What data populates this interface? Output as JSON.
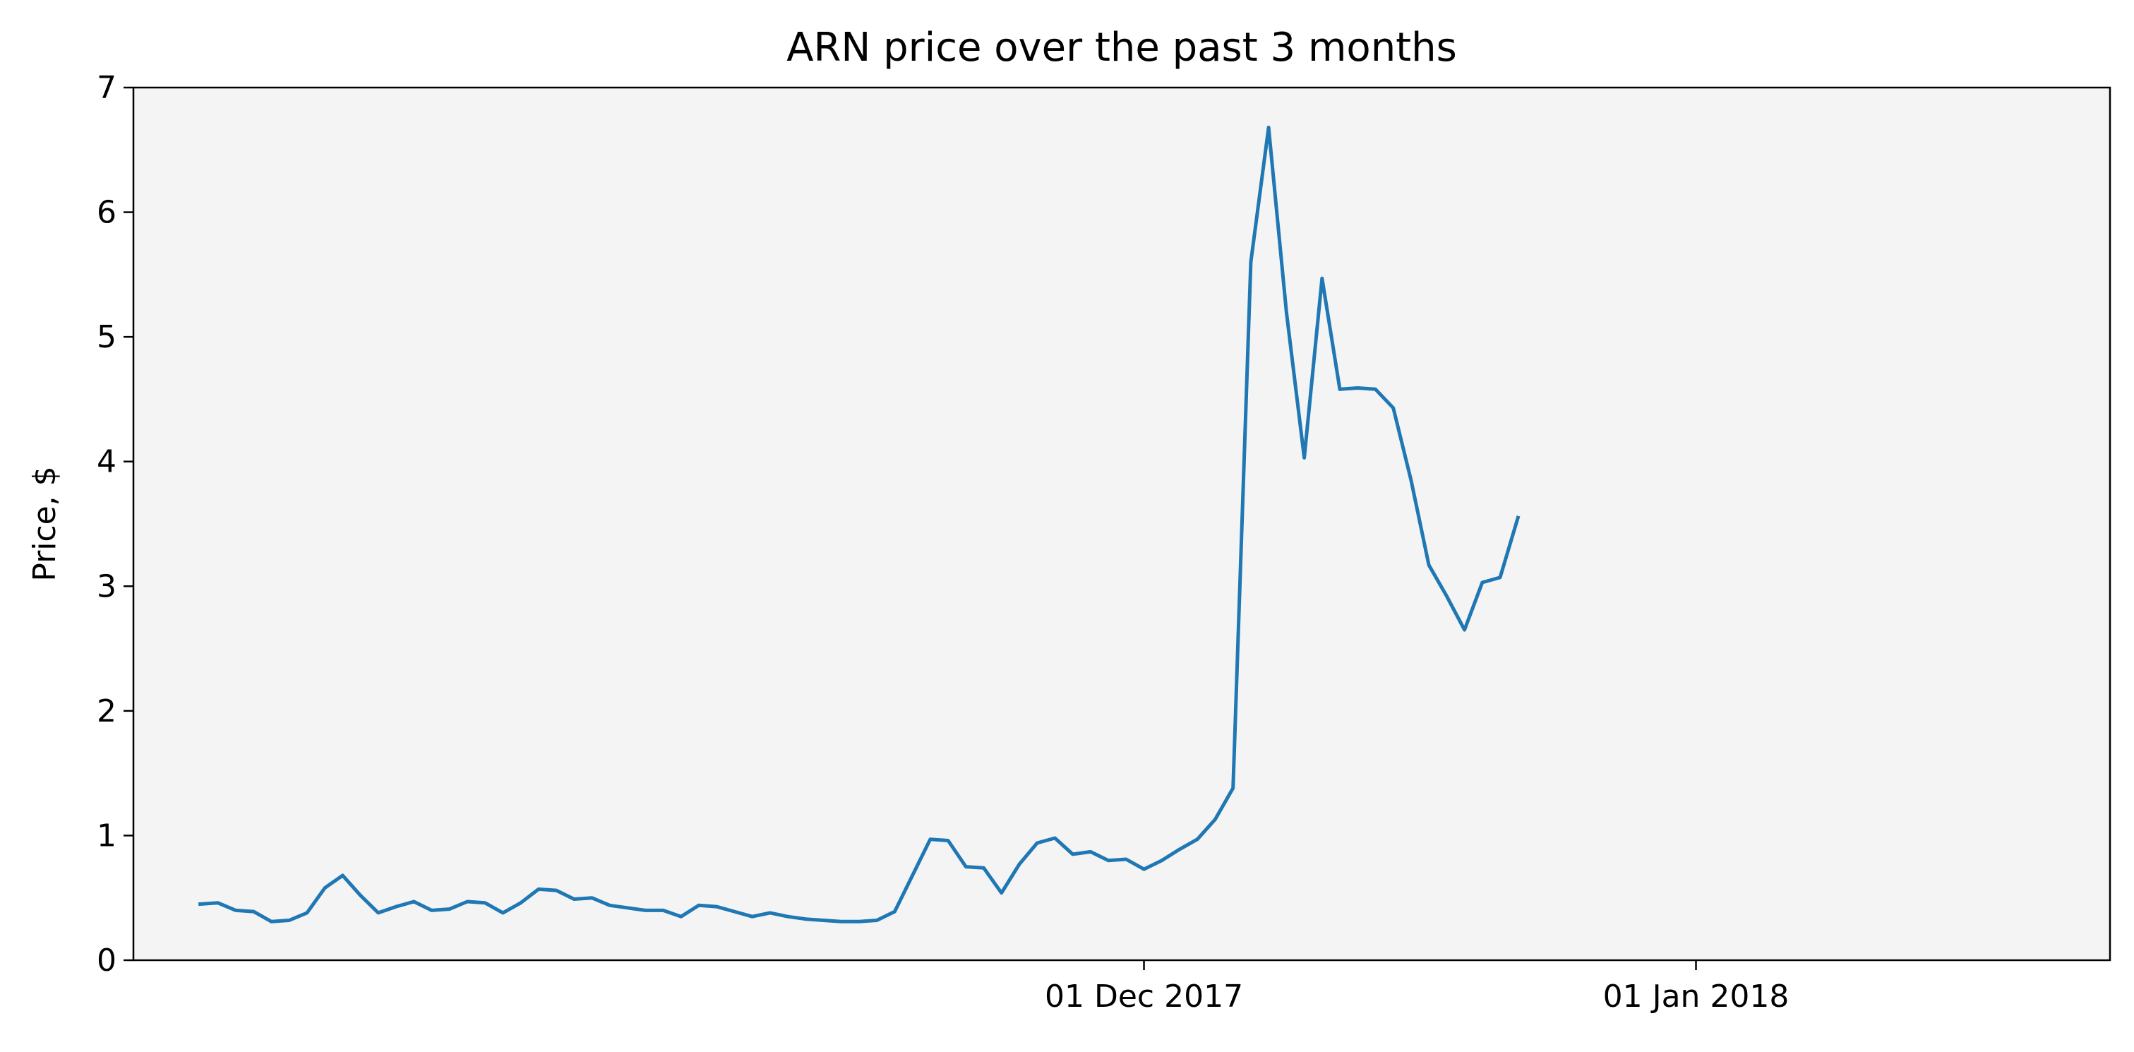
{
  "chart_data": {
    "type": "line",
    "title": "ARN price over the past 3 months",
    "xlabel": "",
    "ylabel": "Price, $",
    "ylim": [
      0,
      7
    ],
    "xlim": [
      "2017-10-05T06:00",
      "2018-01-24T06:00"
    ],
    "yticks": [
      0,
      1,
      2,
      3,
      4,
      5,
      6,
      7
    ],
    "xticks": [
      {
        "value": "2017-12-01",
        "label": "01 Dec 2017"
      },
      {
        "value": "2018-01-01",
        "label": "01 Jan 2018"
      }
    ],
    "grid": false,
    "legend": "none",
    "plot_background": "#f4f4f4",
    "series": [
      {
        "color": "#1f77b4",
        "x": [
          "2017-10-09",
          "2017-10-10",
          "2017-10-11",
          "2017-10-12",
          "2017-10-13",
          "2017-10-14",
          "2017-10-15",
          "2017-10-16",
          "2017-10-17",
          "2017-10-18",
          "2017-10-19",
          "2017-10-20",
          "2017-10-21",
          "2017-10-22",
          "2017-10-23",
          "2017-10-24",
          "2017-10-25",
          "2017-10-26",
          "2017-10-27",
          "2017-10-28",
          "2017-10-29",
          "2017-10-30",
          "2017-10-31",
          "2017-11-01",
          "2017-11-02",
          "2017-11-03",
          "2017-11-04",
          "2017-11-05",
          "2017-11-06",
          "2017-11-07",
          "2017-11-08",
          "2017-11-09",
          "2017-11-10",
          "2017-11-11",
          "2017-11-12",
          "2017-11-13",
          "2017-11-14",
          "2017-11-15",
          "2017-11-16",
          "2017-11-17",
          "2017-11-18",
          "2017-11-19",
          "2017-11-20",
          "2017-11-21",
          "2017-11-22",
          "2017-11-23",
          "2017-11-24",
          "2017-11-25",
          "2017-11-26",
          "2017-11-27",
          "2017-11-28",
          "2017-11-29",
          "2017-11-30",
          "2017-12-01",
          "2017-12-02",
          "2017-12-03",
          "2017-12-04",
          "2017-12-05",
          "2017-12-06",
          "2017-12-07",
          "2017-12-08",
          "2017-12-09",
          "2017-12-10",
          "2017-12-11",
          "2017-12-12",
          "2017-12-13",
          "2017-12-14",
          "2017-12-15",
          "2017-12-16",
          "2017-12-17",
          "2017-12-18",
          "2017-12-19",
          "2017-12-20",
          "2017-12-21",
          "2017-12-22",
          "2017-12-23",
          "2017-12-24",
          "2017-12-25",
          "2017-12-26",
          "2017-12-27",
          "2017-12-28",
          "2017-12-29",
          "2017-12-30",
          "2017-12-31",
          "2018-01-01",
          "2018-01-02",
          "2018-01-03",
          "2018-01-04",
          "2018-01-05",
          "2018-01-06",
          "2018-01-07",
          "2018-01-08",
          "2018-01-09",
          "2018-01-10",
          "2018-01-11",
          "2018-01-12",
          "2018-01-13",
          "2018-01-14",
          "2018-01-15",
          "2018-01-16",
          "2018-01-17",
          "2018-01-18",
          "2018-01-19",
          "2018-01-20",
          "2018-01-21",
          "2018-01-22",
          "2018-01-23",
          "2018-01-24"
        ],
        "y": [
          0.45,
          0.46,
          0.4,
          0.39,
          0.31,
          0.32,
          0.38,
          0.58,
          0.68,
          0.52,
          0.38,
          0.43,
          0.47,
          0.4,
          0.41,
          0.47,
          0.46,
          0.38,
          0.46,
          0.57,
          0.56,
          0.49,
          0.5,
          0.44,
          0.42,
          0.4,
          0.4,
          0.35,
          0.44,
          0.43,
          0.39,
          0.35,
          0.38,
          0.35,
          0.33,
          0.32,
          0.31,
          0.31,
          0.32,
          0.39,
          0.68,
          0.97,
          0.96,
          0.75,
          0.74,
          0.54,
          0.77,
          0.94,
          0.98,
          0.85,
          0.87,
          0.8,
          0.81,
          0.73,
          0.8,
          0.89,
          0.97,
          1.13,
          1.38,
          5.6,
          6.68,
          5.2,
          4.03,
          5.47,
          4.58,
          4.59,
          4.58,
          4.43,
          3.85,
          3.17,
          2.92,
          2.65,
          3.03,
          3.07,
          3.55,
          null,
          null,
          null,
          null,
          null,
          null,
          null,
          null,
          null,
          null,
          null,
          null,
          null,
          null,
          null,
          null,
          null,
          null,
          null,
          null,
          null,
          null,
          null,
          null,
          null,
          null,
          null,
          null,
          null,
          null,
          null,
          null,
          null
        ]
      }
    ]
  }
}
